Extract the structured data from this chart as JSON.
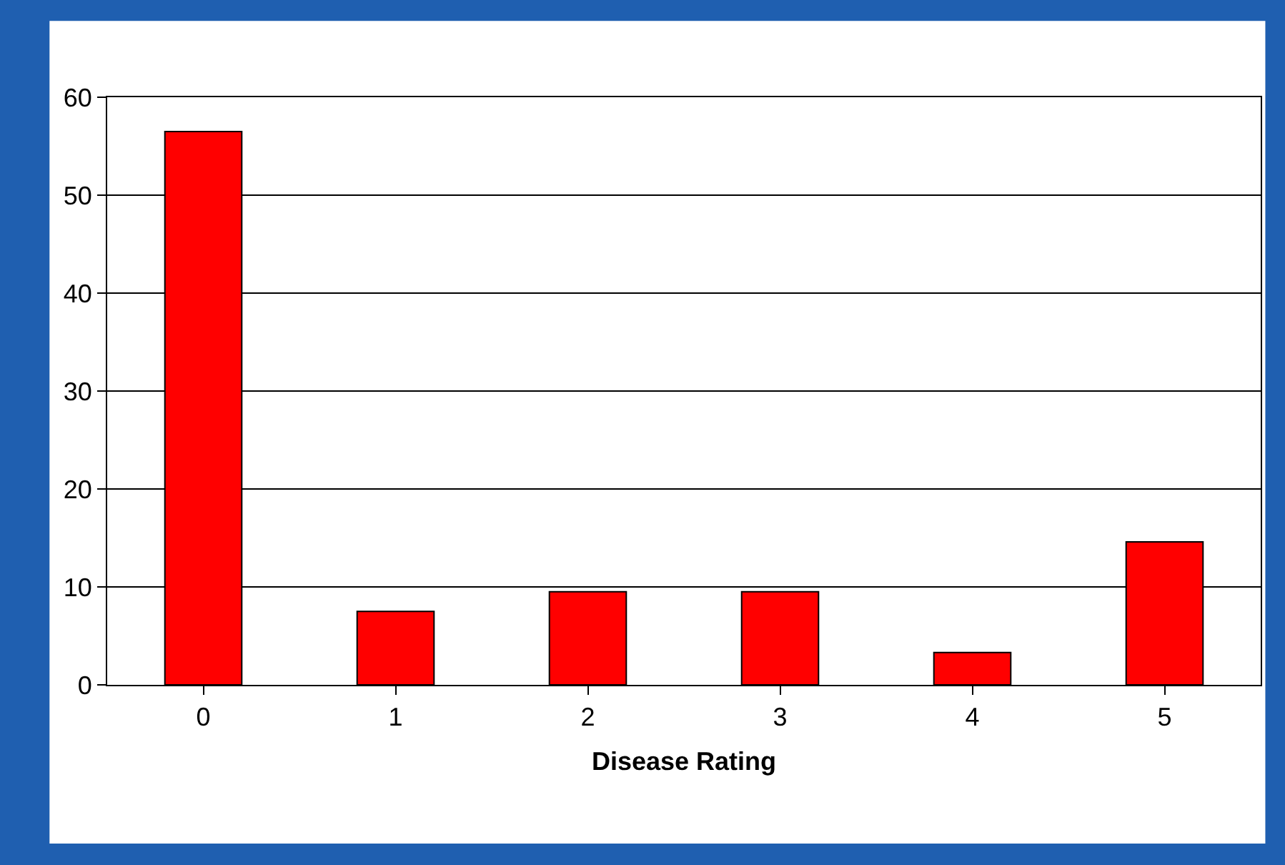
{
  "chart_data": {
    "type": "bar",
    "xlabel": "Disease Rating",
    "categories": [
      "0",
      "1",
      "2",
      "3",
      "4",
      "5"
    ],
    "values": [
      56.5,
      7.5,
      9.5,
      9.5,
      3.3,
      14.6
    ],
    "color": "#ff0000",
    "ylim": [
      0,
      60
    ],
    "yticks": [
      0,
      10,
      20,
      30,
      40,
      50,
      60
    ],
    "grid": "y",
    "legend": false
  }
}
